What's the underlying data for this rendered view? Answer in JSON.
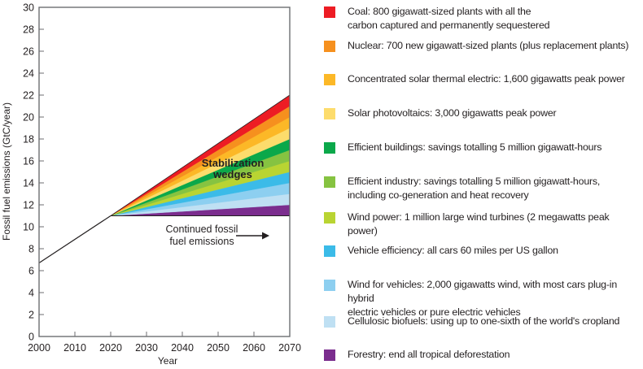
{
  "chart_data": {
    "type": "area",
    "title": "",
    "xlabel": "Year",
    "ylabel": "Fossil fuel emissions (GtC/year)",
    "xlim": [
      2000,
      2070
    ],
    "ylim": [
      0,
      30
    ],
    "x_ticks": [
      2000,
      2010,
      2020,
      2030,
      2040,
      2050,
      2060,
      2070
    ],
    "y_ticks": [
      0,
      2,
      4,
      6,
      8,
      10,
      12,
      14,
      16,
      18,
      20,
      22,
      24,
      26,
      28,
      30
    ],
    "grid": false,
    "historical_line": {
      "x": [
        2000,
        2020
      ],
      "y": [
        6.7,
        11
      ]
    },
    "wedge_start": {
      "year": 2020,
      "value": 11
    },
    "wedge_end_year": 2070,
    "flat_emissions": 11,
    "series": [
      {
        "name": "Forestry",
        "value_2070": 1,
        "color": "#7b2d8e"
      },
      {
        "name": "Cellulosic biofuels",
        "value_2070": 1,
        "color": "#bfe0f3"
      },
      {
        "name": "Wind for vehicles",
        "value_2070": 1,
        "color": "#8dcff0"
      },
      {
        "name": "Vehicle efficiency",
        "value_2070": 1,
        "color": "#3bbbe8"
      },
      {
        "name": "Wind power",
        "value_2070": 1,
        "color": "#b9d432"
      },
      {
        "name": "Efficient industry",
        "value_2070": 1,
        "color": "#86c341"
      },
      {
        "name": "Efficient buildings",
        "value_2070": 1,
        "color": "#0ba84a"
      },
      {
        "name": "Solar photovoltaics",
        "value_2070": 1,
        "color": "#fddc6c"
      },
      {
        "name": "Concentrated solar thermal electric",
        "value_2070": 1,
        "color": "#fcb827"
      },
      {
        "name": "Nuclear",
        "value_2070": 1,
        "color": "#f6901e"
      },
      {
        "name": "Coal",
        "value_2070": 1,
        "color": "#ed1c24"
      }
    ],
    "annotations": {
      "wedges_label": [
        "Stabilization",
        "wedges"
      ],
      "continued_label": [
        "Continued fossil",
        "fuel emissions"
      ]
    },
    "legend_position": "right"
  },
  "legend": [
    {
      "label": "Coal: 800 gigawatt-sized plants with all the\ncarbon captured and permanently sequestered",
      "color": "#ed1c24"
    },
    {
      "label": "Nuclear: 700 new gigawatt-sized plants (plus replacement plants)",
      "color": "#f6901e"
    },
    {
      "label": "Concentrated solar thermal electric: 1,600 gigawatts peak power",
      "color": "#fcb827"
    },
    {
      "label": "Solar photovoltaics: 3,000 gigawatts peak power",
      "color": "#fddc6c"
    },
    {
      "label": "Efficient buildings: savings totalling 5 million gigawatt-hours",
      "color": "#0ba84a"
    },
    {
      "label": "Efficient industry: savings totalling 5 million gigawatt-hours,\nincluding co-generation and heat recovery",
      "color": "#86c341"
    },
    {
      "label": "Wind power: 1 million large wind turbines (2 megawatts peak power)",
      "color": "#b9d432"
    },
    {
      "label": "Vehicle efficiency: all cars 60 miles per US gallon",
      "color": "#3bbbe8"
    },
    {
      "label": "Wind for vehicles: 2,000 gigawatts wind, with most cars plug-in hybrid\nelectric vehicles or pure electric vehicles",
      "color": "#8dcff0"
    },
    {
      "label": "Cellulosic biofuels: using up to one-sixth of the world's cropland",
      "color": "#bfe0f3"
    },
    {
      "label": "Forestry: end all tropical deforestation",
      "color": "#7b2d8e"
    }
  ]
}
